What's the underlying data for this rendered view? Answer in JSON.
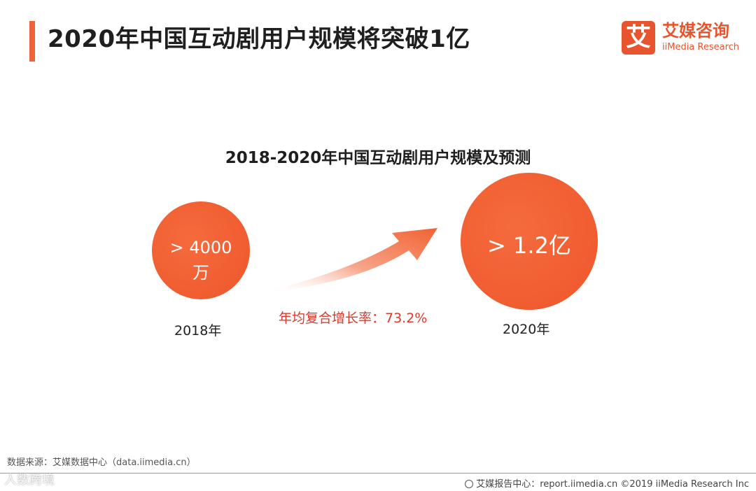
{
  "header": {
    "title": "2020年中国互动剧用户规模将突破1亿"
  },
  "logo": {
    "mark": "艾",
    "cn_name": "艾媒咨询",
    "en_name": "iiMedia Research"
  },
  "chart_data": {
    "type": "bubble",
    "title": "2018-2020年中国互动剧用户规模及预测",
    "points": [
      {
        "year": "2018年",
        "value_label_line1": "> 4000",
        "value_label_line2": "万",
        "value": 4000
      },
      {
        "year": "2020年",
        "value_label_line1": "> 1.2亿",
        "value_label_line2": "",
        "value": 12000
      }
    ],
    "unit": "万",
    "annotation": "年均复合增长率：73.2%",
    "colors": {
      "bubble": "#f26233",
      "arrow": "#f26233",
      "annotation": "#d93a2b"
    }
  },
  "source": "数据来源：艾媒数据中心（data.iimedia.cn）",
  "footer": {
    "text": "艾媒报告中心：report.iimedia.cn   ©2019  iiMedia Research  Inc"
  },
  "watermark": "人数跨境"
}
